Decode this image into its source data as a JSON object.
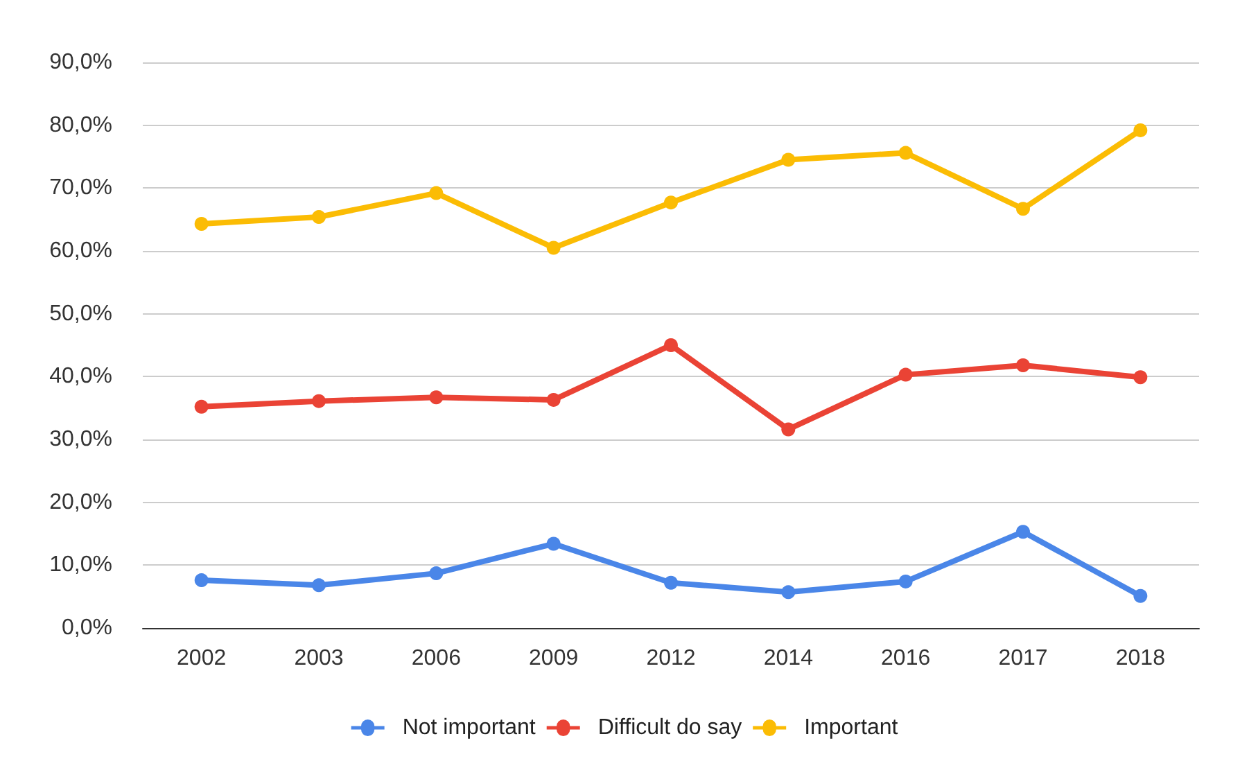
{
  "chart_data": {
    "type": "line",
    "categories": [
      "2002",
      "2003",
      "2006",
      "2009",
      "2012",
      "2014",
      "2016",
      "2017",
      "2018"
    ],
    "series": [
      {
        "name": "Not important",
        "color": "#4a86e8",
        "values": [
          7.6,
          6.8,
          8.7,
          13.4,
          7.2,
          5.7,
          7.4,
          15.3,
          5.1
        ]
      },
      {
        "name": "Difficult do say",
        "color": "#ea4335",
        "values": [
          35.2,
          36.1,
          36.7,
          36.3,
          45.0,
          31.6,
          40.3,
          41.8,
          39.9
        ]
      },
      {
        "name": "Important",
        "color": "#fbbc04",
        "values": [
          64.3,
          65.4,
          69.2,
          60.5,
          67.7,
          74.5,
          75.6,
          66.7,
          79.2
        ]
      }
    ],
    "ylim": [
      0,
      90
    ],
    "yticks": [
      {
        "value": 0,
        "label": "0,0%"
      },
      {
        "value": 10,
        "label": "10,0%"
      },
      {
        "value": 20,
        "label": "20,0%"
      },
      {
        "value": 30,
        "label": "30,0%"
      },
      {
        "value": 40,
        "label": "40,0%"
      },
      {
        "value": 50,
        "label": "50,0%"
      },
      {
        "value": 60,
        "label": "60,0%"
      },
      {
        "value": 70,
        "label": "70,0%"
      },
      {
        "value": 80,
        "label": "80,0%"
      },
      {
        "value": 90,
        "label": "90,0%"
      }
    ],
    "grid": "y",
    "legend": "bottom",
    "marker": "circle",
    "line_style": "solid"
  }
}
